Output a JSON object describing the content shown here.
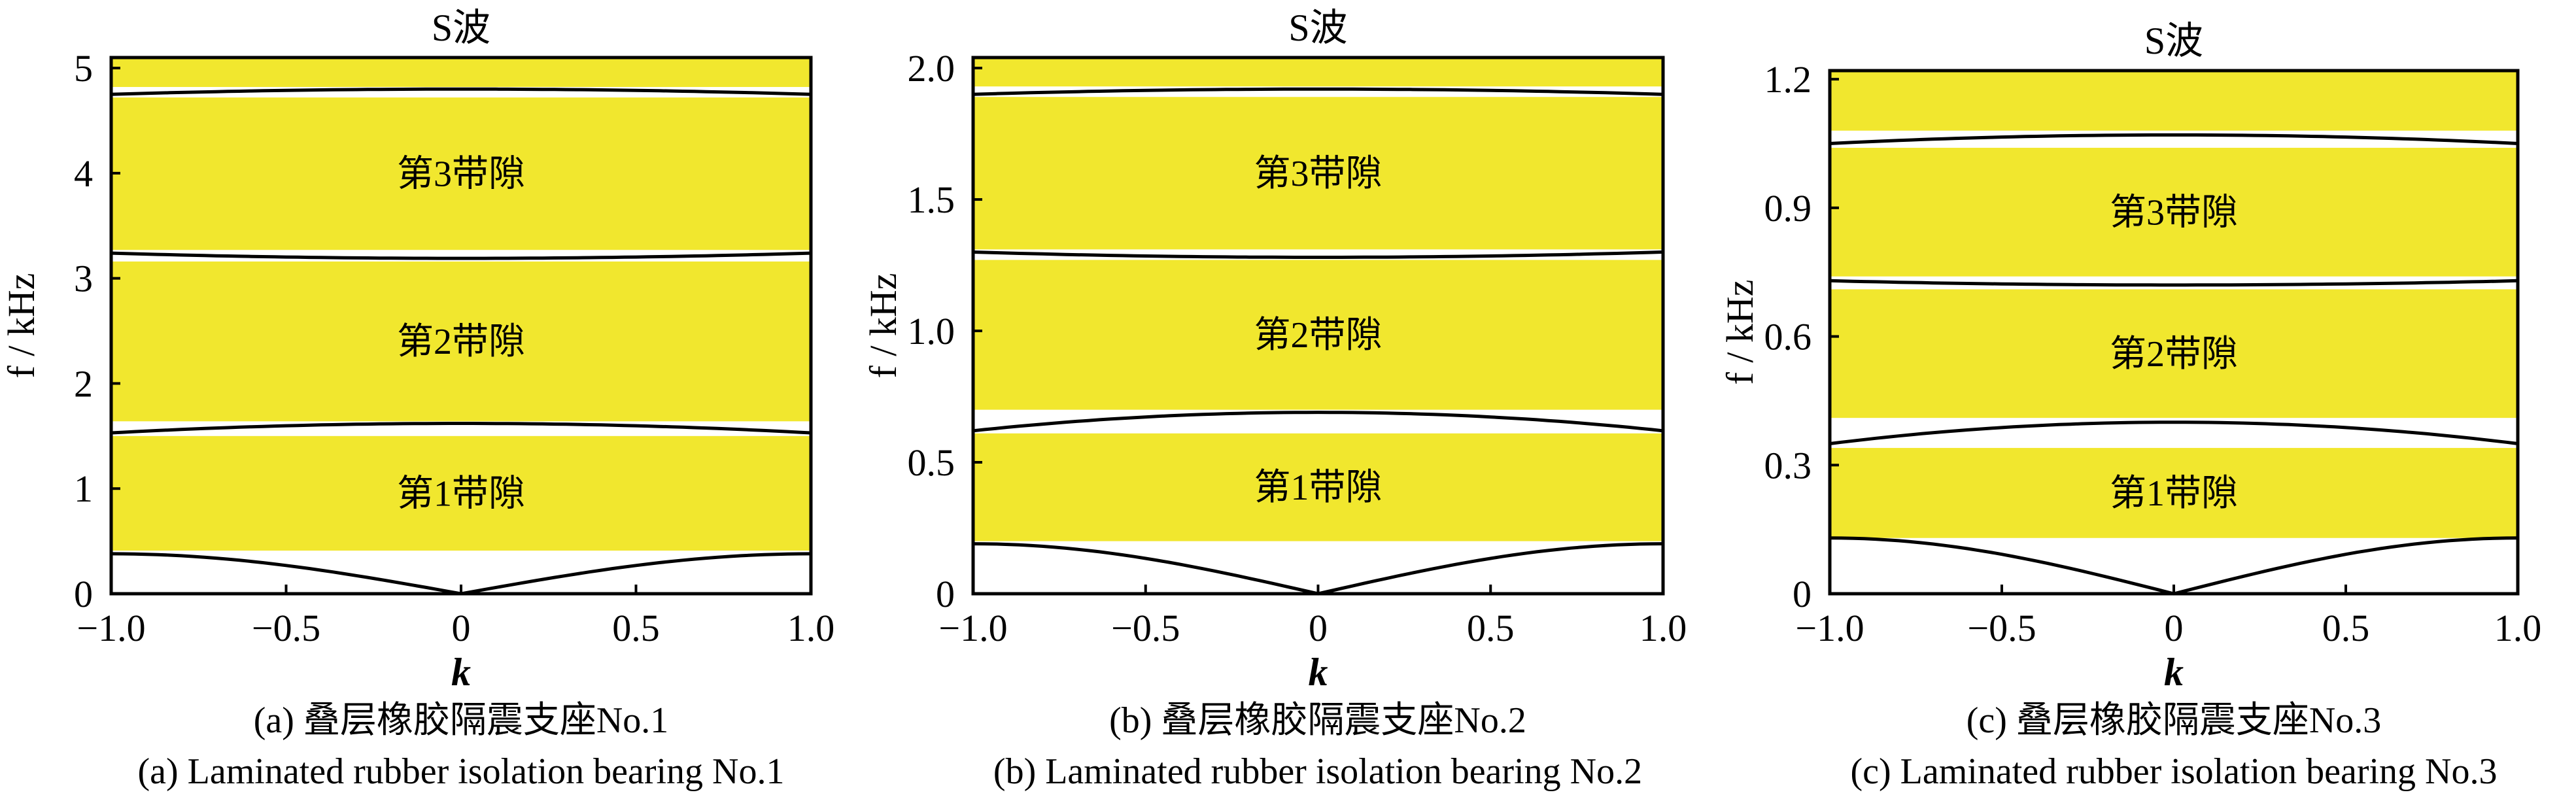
{
  "chart_data": [
    {
      "type": "band-structure",
      "title": "S波",
      "xlabel": "k",
      "ylabel": "f / kHz",
      "xlim": [
        -1.0,
        1.0
      ],
      "ylim": [
        0,
        5.1
      ],
      "xticks": [
        "−1.0",
        "−0.5",
        "0",
        "0.5",
        "1.0"
      ],
      "xtick_values": [
        -1.0,
        -0.5,
        0,
        0.5,
        1.0
      ],
      "yticks": [
        "0",
        "1",
        "2",
        "3",
        "4",
        "5"
      ],
      "ytick_values": [
        0,
        1,
        2,
        3,
        4,
        5
      ],
      "bands": [
        {
          "name": "band-1",
          "x": [
            -1.0,
            0,
            1.0
          ],
          "y": [
            0.38,
            0.0,
            0.38
          ]
        },
        {
          "name": "band-2",
          "x": [
            -1.0,
            0,
            1.0
          ],
          "y": [
            1.53,
            1.62,
            1.53
          ]
        },
        {
          "name": "band-3",
          "x": [
            -1.0,
            0,
            1.0
          ],
          "y": [
            3.24,
            3.19,
            3.24
          ]
        },
        {
          "name": "band-4",
          "x": [
            -1.0,
            0,
            1.0
          ],
          "y": [
            4.75,
            4.8,
            4.75
          ]
        }
      ],
      "gaps": [
        {
          "label": "第1带隙",
          "range": [
            0.41,
            1.5
          ]
        },
        {
          "label": "第2带隙",
          "range": [
            1.64,
            3.16
          ]
        },
        {
          "label": "第3带隙",
          "range": [
            3.27,
            4.72
          ]
        },
        {
          "label": "",
          "range": [
            4.82,
            5.1
          ]
        }
      ],
      "caption_cn": "(a) 叠层橡胶隔震支座No.1",
      "caption_en": "(a) Laminated rubber isolation bearing No.1"
    },
    {
      "type": "band-structure",
      "title": "S波",
      "xlabel": "k",
      "ylabel": "f / kHz",
      "xlim": [
        -1.0,
        1.0
      ],
      "ylim": [
        0,
        2.04
      ],
      "xticks": [
        "−1.0",
        "−0.5",
        "0",
        "0.5",
        "1.0"
      ],
      "xtick_values": [
        -1.0,
        -0.5,
        0,
        0.5,
        1.0
      ],
      "yticks": [
        "0",
        "0.5",
        "1.0",
        "1.5",
        "2.0"
      ],
      "ytick_values": [
        0,
        0.5,
        1.0,
        1.5,
        2.0
      ],
      "bands": [
        {
          "name": "band-1",
          "x": [
            -1.0,
            0,
            1.0
          ],
          "y": [
            0.19,
            0.0,
            0.19
          ]
        },
        {
          "name": "band-2",
          "x": [
            -1.0,
            0,
            1.0
          ],
          "y": [
            0.62,
            0.69,
            0.62
          ]
        },
        {
          "name": "band-3",
          "x": [
            -1.0,
            0,
            1.0
          ],
          "y": [
            1.3,
            1.28,
            1.3
          ]
        },
        {
          "name": "band-4",
          "x": [
            -1.0,
            0,
            1.0
          ],
          "y": [
            1.9,
            1.92,
            1.9
          ]
        }
      ],
      "gaps": [
        {
          "label": "第1带隙",
          "range": [
            0.2,
            0.61
          ]
        },
        {
          "label": "第2带隙",
          "range": [
            0.7,
            1.27
          ]
        },
        {
          "label": "第3带隙",
          "range": [
            1.31,
            1.89
          ]
        },
        {
          "label": "",
          "range": [
            1.93,
            2.04
          ]
        }
      ],
      "caption_cn": "(b) 叠层橡胶隔震支座No.2",
      "caption_en": "(b) Laminated rubber isolation bearing No.2"
    },
    {
      "type": "band-structure",
      "title": "S波",
      "xlabel": "k",
      "ylabel": "f / kHz",
      "xlim": [
        -1.0,
        1.0
      ],
      "ylim": [
        0,
        1.22
      ],
      "xticks": [
        "−1.0",
        "−0.5",
        "0",
        "0.5",
        "1.0"
      ],
      "xtick_values": [
        -1.0,
        -0.5,
        0,
        0.5,
        1.0
      ],
      "yticks": [
        "0",
        "0.3",
        "0.6",
        "0.9",
        "1.2"
      ],
      "ytick_values": [
        0,
        0.3,
        0.6,
        0.9,
        1.2
      ],
      "bands": [
        {
          "name": "band-1",
          "x": [
            -1.0,
            0,
            1.0
          ],
          "y": [
            0.13,
            0.0,
            0.13
          ]
        },
        {
          "name": "band-2",
          "x": [
            -1.0,
            0,
            1.0
          ],
          "y": [
            0.35,
            0.4,
            0.35
          ]
        },
        {
          "name": "band-3",
          "x": [
            -1.0,
            0,
            1.0
          ],
          "y": [
            0.73,
            0.72,
            0.73
          ]
        },
        {
          "name": "band-4",
          "x": [
            -1.0,
            0,
            1.0
          ],
          "y": [
            1.05,
            1.07,
            1.05
          ]
        }
      ],
      "gaps": [
        {
          "label": "第1带隙",
          "range": [
            0.13,
            0.34
          ]
        },
        {
          "label": "第2带隙",
          "range": [
            0.41,
            0.71
          ]
        },
        {
          "label": "第3带隙",
          "range": [
            0.74,
            1.04
          ]
        },
        {
          "label": "",
          "range": [
            1.08,
            1.22
          ]
        }
      ],
      "caption_cn": "(c) 叠层橡胶隔震支座No.3",
      "caption_en": "(c) Laminated rubber isolation bearing No.3"
    }
  ],
  "colors": {
    "gap_fill": "#f1e72e",
    "band_line": "#000000",
    "background": "#ffffff"
  }
}
